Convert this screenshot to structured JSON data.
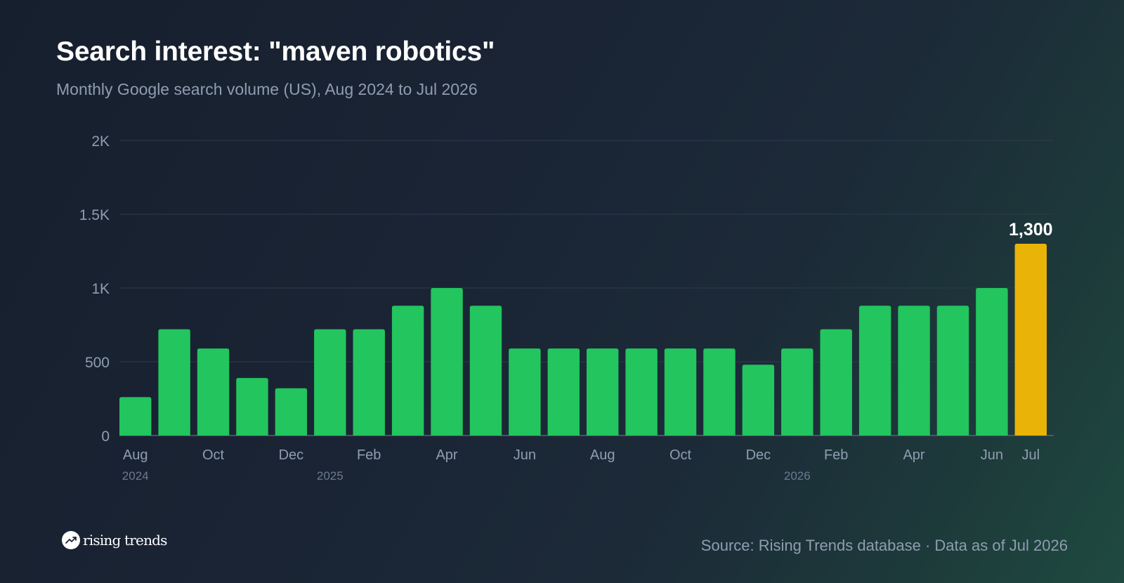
{
  "header": {
    "title": "Search interest: \"maven robotics\"",
    "subtitle": "Monthly Google search volume (US), Aug 2024 to Jul 2026"
  },
  "footer": {
    "brand": "rising trends",
    "brand_icon": "trend-up-icon",
    "source": "Source: Rising Trends database · Data as of Jul 2026"
  },
  "colors": {
    "bar": "#22c55e",
    "highlight": "#eab308",
    "grid": "#2d3a4c",
    "axis_text": "#8f9db1",
    "year_text": "#6b7a8f"
  },
  "chart_data": {
    "type": "bar",
    "categories": [
      "Aug 2024",
      "Sep 2024",
      "Oct 2024",
      "Nov 2024",
      "Dec 2024",
      "Jan 2025",
      "Feb 2025",
      "Mar 2025",
      "Apr 2025",
      "May 2025",
      "Jun 2025",
      "Jul 2025",
      "Aug 2025",
      "Sep 2025",
      "Oct 2025",
      "Nov 2025",
      "Dec 2025",
      "Jan 2026",
      "Feb 2026",
      "Mar 2026",
      "Apr 2026",
      "May 2026",
      "Jun 2026",
      "Jul 2026"
    ],
    "values": [
      260,
      720,
      590,
      390,
      320,
      720,
      720,
      880,
      1000,
      880,
      590,
      590,
      590,
      590,
      590,
      590,
      480,
      590,
      720,
      880,
      880,
      880,
      1000,
      1300
    ],
    "highlight_index": 23,
    "highlight_label": "1,300",
    "ylim": [
      0,
      2000
    ],
    "yticks": [
      {
        "value": 0,
        "label": "0"
      },
      {
        "value": 500,
        "label": "500"
      },
      {
        "value": 1000,
        "label": "1K"
      },
      {
        "value": 1500,
        "label": "1.5K"
      },
      {
        "value": 2000,
        "label": "2K"
      }
    ],
    "xticks": [
      {
        "index": 0,
        "label": "Aug"
      },
      {
        "index": 2,
        "label": "Oct"
      },
      {
        "index": 4,
        "label": "Dec"
      },
      {
        "index": 6,
        "label": "Feb"
      },
      {
        "index": 8,
        "label": "Apr"
      },
      {
        "index": 10,
        "label": "Jun"
      },
      {
        "index": 12,
        "label": "Aug"
      },
      {
        "index": 14,
        "label": "Oct"
      },
      {
        "index": 16,
        "label": "Dec"
      },
      {
        "index": 18,
        "label": "Feb"
      },
      {
        "index": 20,
        "label": "Apr"
      },
      {
        "index": 22,
        "label": "Jun"
      },
      {
        "index": 23,
        "label": "Jul"
      }
    ],
    "year_labels": [
      {
        "index": 0,
        "label": "2024"
      },
      {
        "index": 5,
        "label": "2025"
      },
      {
        "index": 17,
        "label": "2026"
      }
    ],
    "grid": true,
    "legend": "none",
    "title": "Search interest: \"maven robotics\"",
    "xlabel": "",
    "ylabel": ""
  }
}
